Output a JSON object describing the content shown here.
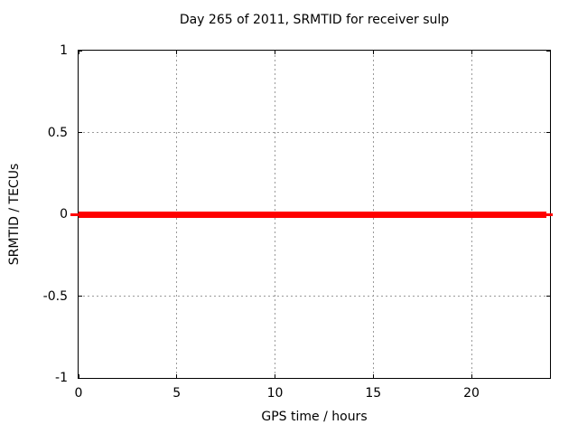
{
  "chart_data": {
    "type": "line",
    "title": "Day 265 of 2011, SRMTID for receiver sulp",
    "xlabel": "GPS time / hours",
    "ylabel": "SRMTID / TECUs",
    "xlim": [
      0,
      24
    ],
    "ylim": [
      -1,
      1
    ],
    "x_ticks": [
      0,
      5,
      10,
      15,
      20
    ],
    "y_ticks": [
      1,
      0.5,
      0,
      -0.5,
      -1
    ],
    "grid": true,
    "legend": "none",
    "series": [
      {
        "name": "SRMTID",
        "color": "#ff0000",
        "y_value": 0,
        "description": "constant zero line spanning the full day",
        "segments": [
          {
            "x0": -0.41,
            "x1": 0.0,
            "thickness_px": 3
          },
          {
            "x0": 0.0,
            "x1": 23.82,
            "thickness_px": 7
          },
          {
            "x0": 23.82,
            "x1": 24.14,
            "thickness_px": 3
          }
        ]
      }
    ]
  },
  "colors": {
    "background": "#ffffff",
    "border": "#000000",
    "grid": "#9a9a9a",
    "text": "#000000",
    "series_line": "#ff0000"
  }
}
